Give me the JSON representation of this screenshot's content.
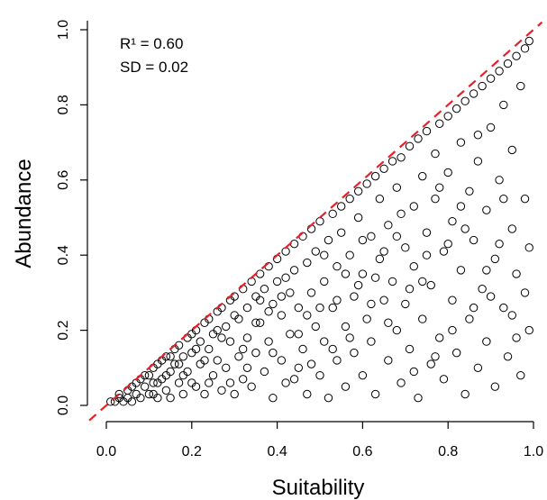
{
  "chart_data": {
    "type": "scatter",
    "xlabel": "Suitability",
    "ylabel": "Abundance",
    "xlim": [
      0,
      1
    ],
    "ylim": [
      0,
      1
    ],
    "xticks": [
      "0.0",
      "0.2",
      "0.4",
      "0.6",
      "0.8",
      "1.0"
    ],
    "yticks": [
      "0.0",
      "0.2",
      "0.4",
      "0.6",
      "0.8",
      "1.0"
    ],
    "annotations": [
      "R¹ = 0.60",
      "SD = 0.02"
    ],
    "reference_line": {
      "style": "dashed",
      "color": "#e8202a",
      "from": [
        0,
        0
      ],
      "to": [
        1,
        1
      ]
    },
    "marker": {
      "shape": "open-circle",
      "color": "#000000"
    },
    "grid": false,
    "points": [
      [
        0.01,
        0.01
      ],
      [
        0.02,
        0.01
      ],
      [
        0.03,
        0.02
      ],
      [
        0.03,
        0.03
      ],
      [
        0.04,
        0.01
      ],
      [
        0.05,
        0.04
      ],
      [
        0.05,
        0.02
      ],
      [
        0.06,
        0.05
      ],
      [
        0.07,
        0.03
      ],
      [
        0.07,
        0.06
      ],
      [
        0.08,
        0.02
      ],
      [
        0.08,
        0.07
      ],
      [
        0.09,
        0.05
      ],
      [
        0.1,
        0.08
      ],
      [
        0.1,
        0.03
      ],
      [
        0.11,
        0.1
      ],
      [
        0.11,
        0.06
      ],
      [
        0.12,
        0.02
      ],
      [
        0.12,
        0.11
      ],
      [
        0.13,
        0.07
      ],
      [
        0.13,
        0.12
      ],
      [
        0.14,
        0.04
      ],
      [
        0.14,
        0.13
      ],
      [
        0.15,
        0.09
      ],
      [
        0.15,
        0.02
      ],
      [
        0.16,
        0.15
      ],
      [
        0.16,
        0.11
      ],
      [
        0.17,
        0.06
      ],
      [
        0.17,
        0.16
      ],
      [
        0.18,
        0.13
      ],
      [
        0.18,
        0.03
      ],
      [
        0.19,
        0.18
      ],
      [
        0.19,
        0.09
      ],
      [
        0.2,
        0.19
      ],
      [
        0.2,
        0.14
      ],
      [
        0.21,
        0.05
      ],
      [
        0.21,
        0.2
      ],
      [
        0.22,
        0.11
      ],
      [
        0.22,
        0.17
      ],
      [
        0.23,
        0.22
      ],
      [
        0.23,
        0.03
      ],
      [
        0.24,
        0.15
      ],
      [
        0.24,
        0.23
      ],
      [
        0.25,
        0.08
      ],
      [
        0.25,
        0.19
      ],
      [
        0.26,
        0.25
      ],
      [
        0.26,
        0.12
      ],
      [
        0.27,
        0.04
      ],
      [
        0.27,
        0.26
      ],
      [
        0.28,
        0.21
      ],
      [
        0.28,
        0.1
      ],
      [
        0.29,
        0.28
      ],
      [
        0.29,
        0.17
      ],
      [
        0.3,
        0.03
      ],
      [
        0.3,
        0.29
      ],
      [
        0.31,
        0.23
      ],
      [
        0.31,
        0.13
      ],
      [
        0.32,
        0.31
      ],
      [
        0.32,
        0.07
      ],
      [
        0.33,
        0.26
      ],
      [
        0.33,
        0.18
      ],
      [
        0.34,
        0.33
      ],
      [
        0.34,
        0.05
      ],
      [
        0.35,
        0.29
      ],
      [
        0.35,
        0.14
      ],
      [
        0.36,
        0.35
      ],
      [
        0.36,
        0.22
      ],
      [
        0.37,
        0.09
      ],
      [
        0.37,
        0.31
      ],
      [
        0.38,
        0.37
      ],
      [
        0.38,
        0.17
      ],
      [
        0.39,
        0.02
      ],
      [
        0.39,
        0.27
      ],
      [
        0.4,
        0.39
      ],
      [
        0.4,
        0.33
      ],
      [
        0.41,
        0.12
      ],
      [
        0.41,
        0.24
      ],
      [
        0.42,
        0.41
      ],
      [
        0.42,
        0.06
      ],
      [
        0.43,
        0.3
      ],
      [
        0.43,
        0.19
      ],
      [
        0.44,
        0.43
      ],
      [
        0.44,
        0.36
      ],
      [
        0.45,
        0.1
      ],
      [
        0.45,
        0.26
      ],
      [
        0.46,
        0.45
      ],
      [
        0.46,
        0.15
      ],
      [
        0.47,
        0.38
      ],
      [
        0.47,
        0.03
      ],
      [
        0.48,
        0.3
      ],
      [
        0.48,
        0.47
      ],
      [
        0.49,
        0.21
      ],
      [
        0.49,
        0.41
      ],
      [
        0.5,
        0.08
      ],
      [
        0.5,
        0.49
      ],
      [
        0.51,
        0.33
      ],
      [
        0.51,
        0.17
      ],
      [
        0.52,
        0.44
      ],
      [
        0.52,
        0.02
      ],
      [
        0.53,
        0.51
      ],
      [
        0.53,
        0.26
      ],
      [
        0.54,
        0.37
      ],
      [
        0.54,
        0.12
      ],
      [
        0.55,
        0.53
      ],
      [
        0.55,
        0.46
      ],
      [
        0.56,
        0.21
      ],
      [
        0.56,
        0.05
      ],
      [
        0.57,
        0.4
      ],
      [
        0.57,
        0.55
      ],
      [
        0.58,
        0.29
      ],
      [
        0.58,
        0.14
      ],
      [
        0.59,
        0.5
      ],
      [
        0.59,
        0.57
      ],
      [
        0.6,
        0.35
      ],
      [
        0.6,
        0.08
      ],
      [
        0.61,
        0.23
      ],
      [
        0.61,
        0.59
      ],
      [
        0.62,
        0.45
      ],
      [
        0.62,
        0.17
      ],
      [
        0.63,
        0.61
      ],
      [
        0.63,
        0.03
      ],
      [
        0.64,
        0.39
      ],
      [
        0.64,
        0.55
      ],
      [
        0.65,
        0.28
      ],
      [
        0.65,
        0.63
      ],
      [
        0.66,
        0.12
      ],
      [
        0.66,
        0.48
      ],
      [
        0.67,
        0.65
      ],
      [
        0.67,
        0.33
      ],
      [
        0.68,
        0.2
      ],
      [
        0.68,
        0.58
      ],
      [
        0.69,
        0.06
      ],
      [
        0.69,
        0.66
      ],
      [
        0.7,
        0.42
      ],
      [
        0.7,
        0.27
      ],
      [
        0.71,
        0.69
      ],
      [
        0.71,
        0.15
      ],
      [
        0.72,
        0.53
      ],
      [
        0.72,
        0.37
      ],
      [
        0.73,
        0.71
      ],
      [
        0.73,
        0.02
      ],
      [
        0.74,
        0.61
      ],
      [
        0.74,
        0.23
      ],
      [
        0.75,
        0.46
      ],
      [
        0.75,
        0.73
      ],
      [
        0.76,
        0.11
      ],
      [
        0.76,
        0.32
      ],
      [
        0.77,
        0.67
      ],
      [
        0.77,
        0.55
      ],
      [
        0.78,
        0.75
      ],
      [
        0.78,
        0.18
      ],
      [
        0.79,
        0.41
      ],
      [
        0.79,
        0.07
      ],
      [
        0.8,
        0.77
      ],
      [
        0.8,
        0.62
      ],
      [
        0.81,
        0.28
      ],
      [
        0.81,
        0.49
      ],
      [
        0.82,
        0.79
      ],
      [
        0.82,
        0.14
      ],
      [
        0.83,
        0.36
      ],
      [
        0.83,
        0.7
      ],
      [
        0.84,
        0.81
      ],
      [
        0.84,
        0.03
      ],
      [
        0.85,
        0.57
      ],
      [
        0.85,
        0.23
      ],
      [
        0.86,
        0.83
      ],
      [
        0.86,
        0.44
      ],
      [
        0.87,
        0.1
      ],
      [
        0.87,
        0.65
      ],
      [
        0.88,
        0.85
      ],
      [
        0.88,
        0.31
      ],
      [
        0.89,
        0.52
      ],
      [
        0.89,
        0.17
      ],
      [
        0.9,
        0.87
      ],
      [
        0.9,
        0.74
      ],
      [
        0.91,
        0.39
      ],
      [
        0.91,
        0.05
      ],
      [
        0.92,
        0.89
      ],
      [
        0.92,
        0.6
      ],
      [
        0.93,
        0.26
      ],
      [
        0.93,
        0.8
      ],
      [
        0.94,
        0.91
      ],
      [
        0.94,
        0.13
      ],
      [
        0.95,
        0.47
      ],
      [
        0.95,
        0.68
      ],
      [
        0.96,
        0.93
      ],
      [
        0.96,
        0.35
      ],
      [
        0.97,
        0.08
      ],
      [
        0.97,
        0.85
      ],
      [
        0.98,
        0.95
      ],
      [
        0.98,
        0.55
      ],
      [
        0.99,
        0.2
      ],
      [
        0.99,
        0.97
      ],
      [
        0.06,
        0.01
      ],
      [
        0.09,
        0.08
      ],
      [
        0.12,
        0.06
      ],
      [
        0.15,
        0.13
      ],
      [
        0.18,
        0.08
      ],
      [
        0.21,
        0.15
      ],
      [
        0.24,
        0.06
      ],
      [
        0.27,
        0.18
      ],
      [
        0.3,
        0.24
      ],
      [
        0.33,
        0.1
      ],
      [
        0.36,
        0.28
      ],
      [
        0.39,
        0.14
      ],
      [
        0.42,
        0.34
      ],
      [
        0.45,
        0.19
      ],
      [
        0.48,
        0.11
      ],
      [
        0.51,
        0.4
      ],
      [
        0.54,
        0.28
      ],
      [
        0.57,
        0.18
      ],
      [
        0.6,
        0.44
      ],
      [
        0.63,
        0.34
      ],
      [
        0.66,
        0.22
      ],
      [
        0.69,
        0.51
      ],
      [
        0.72,
        0.09
      ],
      [
        0.75,
        0.4
      ],
      [
        0.78,
        0.58
      ],
      [
        0.81,
        0.2
      ],
      [
        0.84,
        0.47
      ],
      [
        0.87,
        0.72
      ],
      [
        0.9,
        0.29
      ],
      [
        0.93,
        0.55
      ],
      [
        0.96,
        0.18
      ],
      [
        0.99,
        0.42
      ],
      [
        0.11,
        0.03
      ],
      [
        0.17,
        0.11
      ],
      [
        0.23,
        0.12
      ],
      [
        0.29,
        0.06
      ],
      [
        0.35,
        0.22
      ],
      [
        0.41,
        0.29
      ],
      [
        0.47,
        0.24
      ],
      [
        0.53,
        0.15
      ],
      [
        0.59,
        0.32
      ],
      [
        0.65,
        0.41
      ],
      [
        0.71,
        0.31
      ],
      [
        0.77,
        0.13
      ],
      [
        0.83,
        0.53
      ],
      [
        0.89,
        0.36
      ],
      [
        0.95,
        0.24
      ],
      [
        0.14,
        0.08
      ],
      [
        0.2,
        0.06
      ],
      [
        0.26,
        0.2
      ],
      [
        0.32,
        0.15
      ],
      [
        0.38,
        0.25
      ],
      [
        0.44,
        0.07
      ],
      [
        0.5,
        0.26
      ],
      [
        0.56,
        0.35
      ],
      [
        0.62,
        0.27
      ],
      [
        0.68,
        0.45
      ],
      [
        0.74,
        0.33
      ],
      [
        0.8,
        0.43
      ],
      [
        0.86,
        0.26
      ],
      [
        0.92,
        0.43
      ],
      [
        0.98,
        0.3
      ]
    ]
  }
}
